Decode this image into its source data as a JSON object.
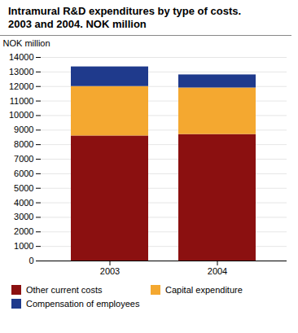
{
  "chart_data": {
    "type": "bar",
    "stacked": true,
    "title": "Intramural R&D expenditures by type of costs.",
    "subtitle": "2003 and 2004. NOK million",
    "ylabel": "NOK million",
    "categories": [
      "2003",
      "2004"
    ],
    "series": [
      {
        "name": "Other current costs",
        "color": "#8B1010",
        "values": [
          8600,
          8700
        ]
      },
      {
        "name": "Capital expenditure",
        "color": "#F4A830",
        "values": [
          3400,
          3200
        ]
      },
      {
        "name": "Compensation of employees",
        "color": "#1F3A8C",
        "values": [
          1350,
          900
        ]
      }
    ],
    "ylim": [
      0,
      14000
    ],
    "yticks": [
      0,
      1000,
      2000,
      3000,
      4000,
      5000,
      6000,
      7000,
      8000,
      9000,
      10000,
      11000,
      12000,
      13000,
      14000
    ],
    "grid": true,
    "legend": "bottom"
  }
}
